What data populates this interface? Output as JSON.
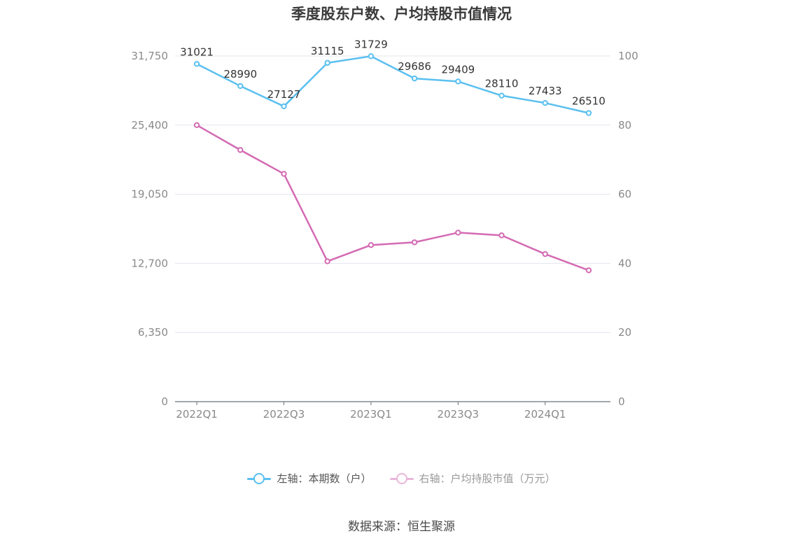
{
  "chart_data": {
    "type": "line",
    "title": "季度股东户数、户均持股市值情况",
    "categories": [
      "2022Q1",
      "2022Q2",
      "2022Q3",
      "2022Q4",
      "2023Q1",
      "2023Q2",
      "2023Q3",
      "2023Q4",
      "2024Q1",
      "2024Q2"
    ],
    "x_tick_labels": [
      "2022Q1",
      "2022Q3",
      "2023Q1",
      "2023Q3",
      "2024Q1"
    ],
    "left_axis": {
      "ylim": [
        0,
        31750
      ],
      "ticks": [
        "0",
        "6,350",
        "12,700",
        "19,050",
        "25,400",
        "31,750"
      ]
    },
    "right_axis": {
      "ylim": [
        0,
        100
      ],
      "ticks": [
        "0",
        "20",
        "40",
        "60",
        "80",
        "100"
      ]
    },
    "grid": true,
    "legend_position": "bottom",
    "series": [
      {
        "name": "左轴：本期数（户）",
        "axis": "left",
        "color": "#5bc0f0",
        "values": [
          31021,
          28990,
          27127,
          31115,
          31729,
          29686,
          29409,
          28110,
          27433,
          26510
        ],
        "data_labels": [
          "31021",
          "28990",
          "27127",
          "31115",
          "31729",
          "29686",
          "29409",
          "28110",
          "27433",
          "26510"
        ]
      },
      {
        "name": "右轴：户均持股市值（万元）",
        "axis": "right",
        "color": "#d46bb3",
        "values": [
          80.0,
          72.8,
          65.9,
          40.6,
          45.3,
          46.1,
          48.9,
          48.1,
          42.7,
          38.0
        ]
      }
    ]
  },
  "source": "数据来源：恒生聚源"
}
